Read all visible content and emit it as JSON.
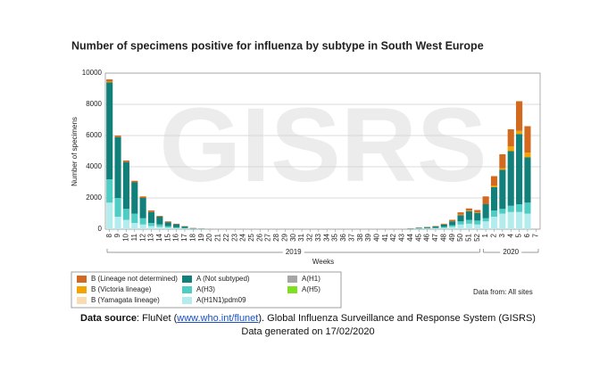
{
  "chart_data": {
    "type": "stacked_bar",
    "title": "Number of specimens positive for influenza by subtype in South West Europe",
    "watermark": "GISRS",
    "ylabel": "Number of specimens",
    "xlabel": "Weeks",
    "years": [
      "2019",
      "2020"
    ],
    "note": "Data from: All sites",
    "categories": [
      "8",
      "9",
      "10",
      "11",
      "12",
      "13",
      "14",
      "15",
      "16",
      "17",
      "18",
      "19",
      "20",
      "21",
      "22",
      "23",
      "24",
      "25",
      "26",
      "27",
      "28",
      "29",
      "30",
      "31",
      "32",
      "33",
      "34",
      "35",
      "36",
      "37",
      "38",
      "39",
      "40",
      "41",
      "42",
      "43",
      "44",
      "45",
      "46",
      "47",
      "48",
      "49",
      "50",
      "51",
      "52",
      "1",
      "2",
      "3",
      "4",
      "5",
      "6",
      "7"
    ],
    "ylim": [
      0,
      10000
    ],
    "yticks": [
      0,
      2000,
      4000,
      6000,
      8000,
      10000
    ],
    "grid": true,
    "series": [
      {
        "name": "B (Lineage not determined)",
        "color": "#d2691e",
        "values": [
          150,
          100,
          100,
          100,
          100,
          100,
          50,
          50,
          30,
          20,
          10,
          5,
          5,
          0,
          0,
          0,
          0,
          0,
          0,
          0,
          0,
          0,
          0,
          0,
          0,
          0,
          0,
          0,
          0,
          0,
          0,
          0,
          0,
          0,
          0,
          0,
          10,
          10,
          20,
          30,
          50,
          100,
          150,
          150,
          150,
          500,
          600,
          900,
          1100,
          1900,
          1700,
          0
        ]
      },
      {
        "name": "B (Victoria lineage)",
        "color": "#f4a300",
        "values": [
          50,
          0,
          0,
          0,
          0,
          0,
          0,
          0,
          0,
          0,
          0,
          0,
          0,
          0,
          0,
          0,
          0,
          0,
          0,
          0,
          0,
          0,
          0,
          0,
          0,
          0,
          0,
          0,
          0,
          0,
          0,
          0,
          0,
          0,
          0,
          0,
          0,
          0,
          0,
          0,
          0,
          0,
          30,
          30,
          30,
          0,
          100,
          100,
          300,
          200,
          300,
          0
        ]
      },
      {
        "name": "B (Yamagata lineage)",
        "color": "#f9dcb0",
        "values": [
          0,
          0,
          0,
          0,
          0,
          0,
          0,
          0,
          0,
          0,
          0,
          0,
          0,
          0,
          0,
          0,
          0,
          0,
          0,
          0,
          0,
          0,
          0,
          0,
          0,
          0,
          0,
          0,
          0,
          0,
          0,
          0,
          0,
          0,
          0,
          0,
          0,
          0,
          0,
          0,
          0,
          0,
          0,
          0,
          0,
          0,
          0,
          0,
          0,
          0,
          0,
          0
        ]
      },
      {
        "name": "A (Not subtyped)",
        "color": "#11807a",
        "values": [
          6200,
          3900,
          3000,
          2000,
          1300,
          700,
          500,
          250,
          200,
          100,
          30,
          15,
          5,
          0,
          0,
          0,
          0,
          0,
          0,
          0,
          0,
          0,
          0,
          0,
          0,
          0,
          0,
          0,
          0,
          0,
          0,
          0,
          0,
          0,
          0,
          0,
          20,
          40,
          60,
          80,
          150,
          250,
          400,
          550,
          500,
          900,
          1500,
          2500,
          3500,
          4500,
          2900,
          0
        ]
      },
      {
        "name": "A(H3)",
        "color": "#4ecdc4",
        "values": [
          1500,
          1200,
          700,
          600,
          400,
          200,
          150,
          100,
          60,
          40,
          20,
          10,
          5,
          0,
          0,
          0,
          0,
          0,
          0,
          0,
          0,
          0,
          0,
          0,
          0,
          0,
          0,
          0,
          0,
          0,
          0,
          0,
          0,
          0,
          0,
          0,
          10,
          20,
          30,
          40,
          70,
          100,
          200,
          250,
          250,
          200,
          400,
          300,
          400,
          500,
          700,
          0
        ]
      },
      {
        "name": "A(H1N1)pdm09",
        "color": "#b3ecec",
        "values": [
          1700,
          800,
          600,
          400,
          300,
          200,
          150,
          100,
          60,
          40,
          20,
          10,
          5,
          0,
          0,
          0,
          0,
          0,
          0,
          0,
          0,
          0,
          0,
          0,
          0,
          0,
          0,
          0,
          0,
          0,
          0,
          0,
          0,
          0,
          0,
          0,
          10,
          30,
          40,
          50,
          80,
          150,
          300,
          350,
          300,
          500,
          800,
          1000,
          1100,
          1100,
          1000,
          0
        ]
      },
      {
        "name": "A(H1)",
        "color": "#a6a6a6",
        "values": [
          0,
          0,
          0,
          0,
          0,
          0,
          0,
          0,
          0,
          0,
          0,
          0,
          0,
          0,
          0,
          0,
          0,
          0,
          0,
          0,
          0,
          0,
          0,
          0,
          0,
          0,
          0,
          0,
          0,
          0,
          0,
          0,
          0,
          0,
          0,
          0,
          0,
          0,
          0,
          0,
          0,
          0,
          0,
          0,
          0,
          0,
          0,
          0,
          0,
          0,
          0,
          0
        ]
      },
      {
        "name": "A(H5)",
        "color": "#7fe020",
        "values": [
          0,
          0,
          0,
          0,
          0,
          0,
          0,
          0,
          0,
          0,
          0,
          0,
          0,
          0,
          0,
          0,
          0,
          0,
          0,
          0,
          0,
          0,
          0,
          0,
          0,
          0,
          0,
          0,
          0,
          0,
          0,
          0,
          0,
          0,
          0,
          0,
          0,
          0,
          0,
          0,
          0,
          0,
          0,
          0,
          0,
          0,
          0,
          0,
          0,
          0,
          0,
          0
        ]
      }
    ]
  },
  "footer": {
    "source_label": "Data source",
    "source_pre": ": FluNet (",
    "source_link": "www.who.int/flunet",
    "source_post": "). Global Influenza Surveillance and Response System (GISRS)",
    "generated": "Data generated on 17/02/2020"
  }
}
